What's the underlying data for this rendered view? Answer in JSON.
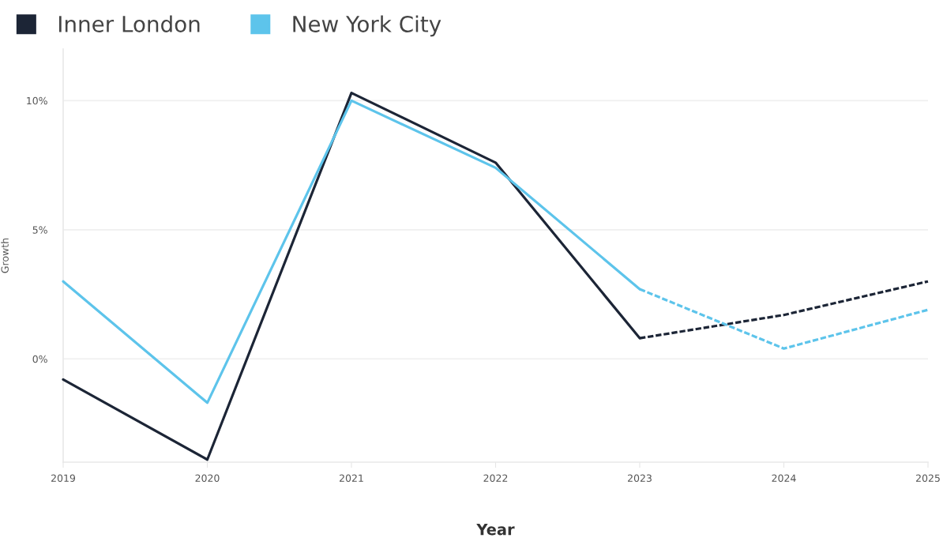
{
  "chart_data": {
    "type": "line",
    "xlabel": "Year",
    "ylabel": "Growth",
    "x": [
      2019,
      2020,
      2021,
      2022,
      2023,
      2024,
      2025
    ],
    "series": [
      {
        "name": "Inner London",
        "color": "#1c2536",
        "line_style": "solid",
        "values": [
          -0.8,
          -3.9,
          10.3,
          7.6,
          0.8,
          null,
          null
        ]
      },
      {
        "name": "New York City",
        "color": "#5dc4eb",
        "line_style": "solid",
        "values": [
          3.0,
          -1.7,
          10.0,
          7.4,
          2.7,
          null,
          null
        ]
      },
      {
        "color": "#1c2536",
        "line_style": "dashed",
        "values": [
          null,
          null,
          null,
          null,
          0.8,
          1.7,
          3.0
        ]
      },
      {
        "color": "#5dc4eb",
        "line_style": "dashed",
        "values": [
          null,
          null,
          null,
          null,
          2.7,
          0.4,
          1.9
        ]
      }
    ],
    "xlim": [
      2019,
      2025
    ],
    "xticks": [
      2019,
      2020,
      2021,
      2022,
      2023,
      2024,
      2025
    ],
    "ylim": [
      -4,
      12
    ],
    "yticks": [
      {
        "value": 0,
        "label": "0%"
      },
      {
        "value": 5,
        "label": "5%"
      },
      {
        "value": 10,
        "label": "10%"
      }
    ],
    "grid": "y",
    "legend": "top left"
  }
}
